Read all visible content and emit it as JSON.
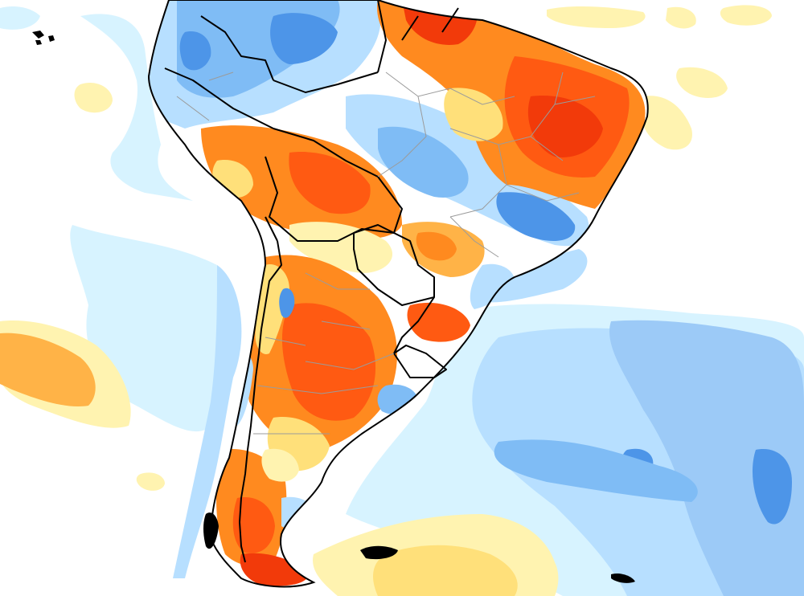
{
  "map": {
    "projection": "geographic",
    "region": "South America",
    "background_color": "#ffffff",
    "anomaly_palette": {
      "pale_blue": "#d7f3ff",
      "light_blue": "#b7dfff",
      "mid_blue": "#7fbcf5",
      "blue": "#4d95e8",
      "pale_yellow": "#fff3b0",
      "yellow": "#ffe07a",
      "orange_light": "#ffb347",
      "orange": "#ff8a1f",
      "orange_red": "#ff5a12",
      "red": "#f23a0a"
    },
    "border_color": "#000000",
    "subdivision_color": "#9b9b9b",
    "legend": null,
    "title": null
  }
}
